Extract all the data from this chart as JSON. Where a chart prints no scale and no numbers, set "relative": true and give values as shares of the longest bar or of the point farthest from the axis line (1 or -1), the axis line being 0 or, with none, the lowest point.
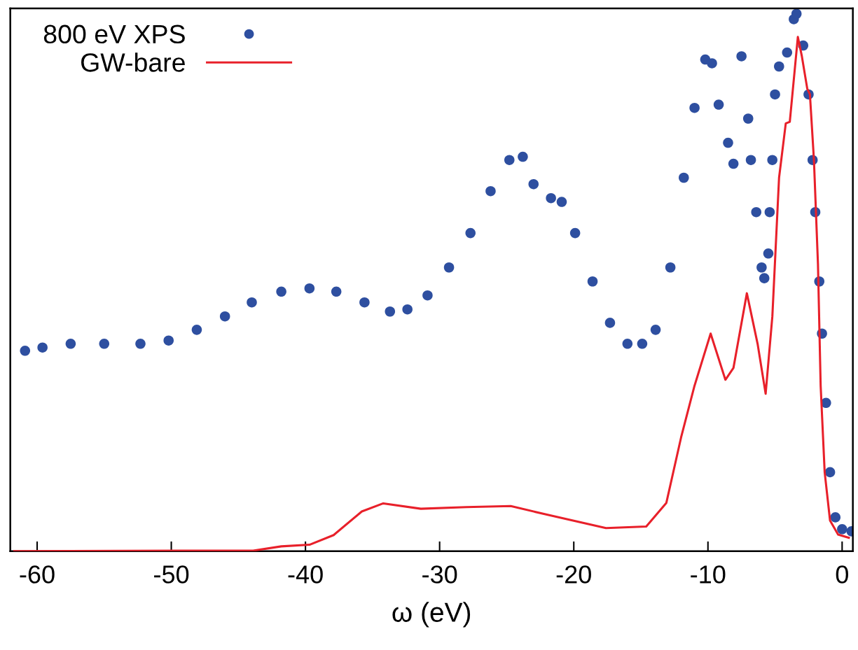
{
  "chart_data": {
    "type": "line",
    "relative": true,
    "xlabel": "ω (eV)",
    "xlim": [
      -62,
      0.8
    ],
    "xticks": [
      -60,
      -50,
      -40,
      -30,
      -20,
      -10,
      0
    ],
    "tick_labels": "x",
    "legend": "top left",
    "grid": false,
    "series": [
      {
        "name": "800 eV XPS",
        "type": "scatter",
        "marker": "circle",
        "color": "#2e4fa0",
        "x": [
          -60.9,
          -59.6,
          -57.5,
          -55.0,
          -52.3,
          -50.2,
          -48.1,
          -46.0,
          -44.0,
          -41.8,
          -39.7,
          -37.7,
          -35.6,
          -33.7,
          -32.4,
          -30.9,
          -29.3,
          -27.7,
          -26.2,
          -24.8,
          -23.8,
          -23.0,
          -21.7,
          -20.9,
          -19.9,
          -18.6,
          -17.3,
          -16.0,
          -14.9,
          -13.9,
          -12.8,
          -11.8,
          -11.0,
          -10.2,
          -9.7,
          -9.2,
          -8.5,
          -8.1,
          -7.5,
          -7.0,
          -6.8,
          -6.4,
          -6.0,
          -5.8,
          -5.5,
          -5.4,
          -5.2,
          -5.0,
          -4.7,
          -4.1,
          -3.6,
          -3.4,
          -2.9,
          -2.5,
          -2.2,
          -2.0,
          -1.7,
          -1.5,
          -1.2,
          -0.9,
          -0.5,
          0.0,
          0.7
        ],
        "values": [
          0.373,
          0.379,
          0.386,
          0.386,
          0.386,
          0.392,
          0.412,
          0.437,
          0.463,
          0.483,
          0.489,
          0.483,
          0.463,
          0.446,
          0.45,
          0.476,
          0.528,
          0.592,
          0.67,
          0.728,
          0.734,
          0.683,
          0.657,
          0.65,
          0.592,
          0.502,
          0.425,
          0.386,
          0.386,
          0.412,
          0.528,
          0.695,
          0.825,
          0.915,
          0.908,
          0.831,
          0.76,
          0.721,
          0.921,
          0.805,
          0.728,
          0.631,
          0.528,
          0.508,
          0.554,
          0.631,
          0.728,
          0.85,
          0.902,
          0.928,
          0.99,
          1.0,
          0.941,
          0.85,
          0.728,
          0.631,
          0.502,
          0.405,
          0.276,
          0.147,
          0.063,
          0.041,
          0.037
        ]
      },
      {
        "name": "GW-bare",
        "marker": "none",
        "line_style": "solid",
        "color": "#e8202a",
        "x": [
          -61.7,
          -47.1,
          -43.9,
          -41.8,
          -39.7,
          -37.9,
          -35.8,
          -34.2,
          -31.4,
          -28.0,
          -24.7,
          -22.0,
          -17.6,
          -14.6,
          -13.1,
          -12.0,
          -11.0,
          -9.8,
          -8.7,
          -8.1,
          -7.1,
          -6.3,
          -5.7,
          -5.2,
          -4.7,
          -4.2,
          -3.9,
          -3.3,
          -3.0,
          -2.6,
          -2.4,
          -2.1,
          -1.8,
          -1.6,
          -1.3,
          -0.9,
          -0.3,
          0.5
        ],
        "values": [
          0.0,
          0.001,
          0.001,
          0.009,
          0.012,
          0.03,
          0.074,
          0.089,
          0.079,
          0.082,
          0.084,
          0.068,
          0.043,
          0.046,
          0.09,
          0.212,
          0.308,
          0.405,
          0.319,
          0.341,
          0.48,
          0.386,
          0.293,
          0.437,
          0.695,
          0.796,
          0.799,
          0.957,
          0.921,
          0.861,
          0.85,
          0.728,
          0.534,
          0.308,
          0.147,
          0.057,
          0.031,
          0.025
        ]
      }
    ]
  }
}
